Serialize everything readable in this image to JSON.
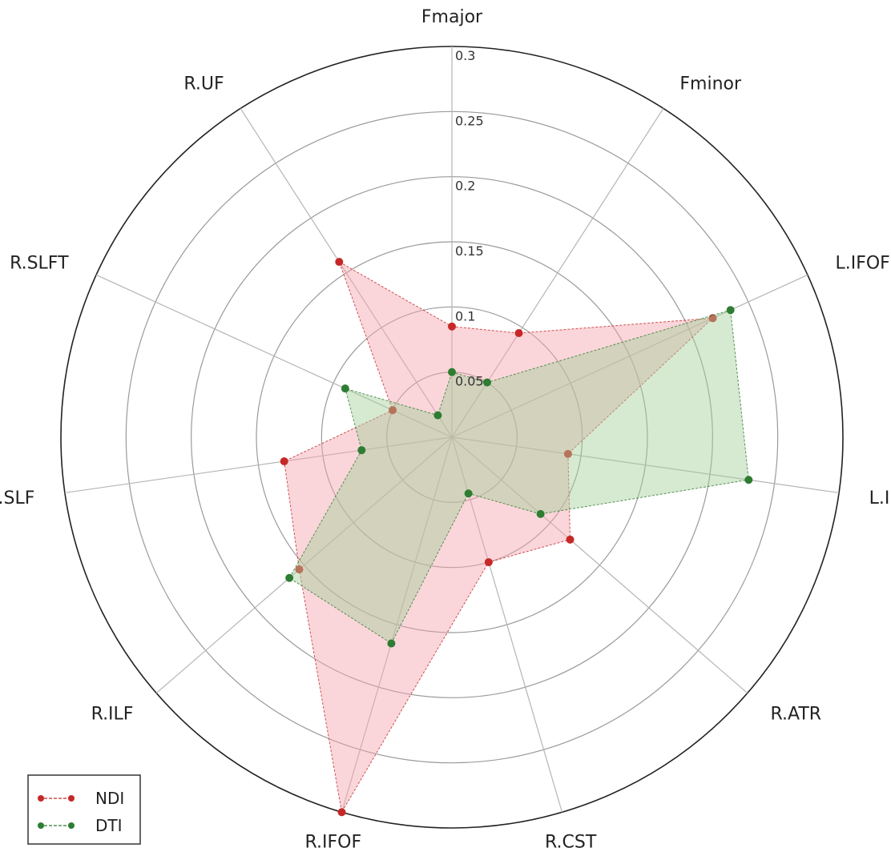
{
  "chart_data": {
    "type": "radar",
    "axes": [
      "Fmajor",
      "Fminor",
      "L.IFOF",
      "L.ILF",
      "R.ATR",
      "R.CST",
      "R.IFOF",
      "R.ILF",
      "R.SLF",
      "R.SLFT",
      "R.UF"
    ],
    "tick_labels": [
      "0.05",
      "0.1",
      "0.15",
      "0.2",
      "0.25",
      "0.3"
    ],
    "tick_values": [
      0.05,
      0.1,
      0.15,
      0.2,
      0.25,
      0.3
    ],
    "rlim": [
      0,
      0.3
    ],
    "grid": true,
    "legend_position": "bottom-left",
    "series": [
      {
        "name": "NDI",
        "color": "#c62828",
        "fill": "#f4a3ad",
        "values": [
          0.085,
          0.095,
          0.22,
          0.09,
          0.12,
          0.1,
          0.3,
          0.155,
          0.13,
          0.05,
          0.16
        ]
      },
      {
        "name": "DTI",
        "color": "#2e7d32",
        "fill": "#a5cf9a",
        "values": [
          0.05,
          0.05,
          0.235,
          0.23,
          0.09,
          0.045,
          0.165,
          0.165,
          0.07,
          0.09,
          0.02
        ]
      }
    ]
  }
}
